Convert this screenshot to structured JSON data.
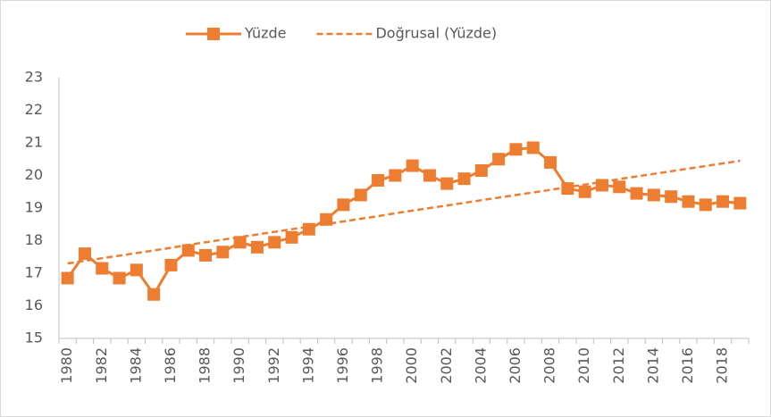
{
  "chart_data": {
    "type": "line",
    "categories": [
      "1980",
      null,
      "1982",
      null,
      "1984",
      null,
      "1986",
      null,
      "1988",
      null,
      "1990",
      null,
      "1992",
      null,
      "1994",
      null,
      "1996",
      null,
      "1998",
      null,
      "2000",
      null,
      "2002",
      null,
      "2004",
      null,
      "2006",
      null,
      "2008",
      null,
      "2010",
      null,
      "2012",
      null,
      "2014",
      null,
      "2016",
      null,
      "2018",
      null
    ],
    "series": [
      {
        "name": "Yüzde",
        "color": "#ED7D31",
        "markers": true,
        "dashed": false,
        "values": [
          16.85,
          17.6,
          17.15,
          16.85,
          17.1,
          16.35,
          17.25,
          17.7,
          17.55,
          17.65,
          17.95,
          17.8,
          17.95,
          18.1,
          18.35,
          18.65,
          19.1,
          19.4,
          19.85,
          20.0,
          20.3,
          20.0,
          19.75,
          19.9,
          20.15,
          20.5,
          20.8,
          20.85,
          20.4,
          19.6,
          19.5,
          19.7,
          19.65,
          19.45,
          19.4,
          19.35,
          19.2,
          19.1,
          19.2,
          19.15
        ]
      },
      {
        "name": "Doğrusal (Yüzde)",
        "color": "#ED7D31",
        "markers": false,
        "dashed": true,
        "values": [
          17.3,
          17.38,
          17.46,
          17.54,
          17.62,
          17.7,
          17.78,
          17.87,
          17.95,
          18.03,
          18.11,
          18.19,
          18.27,
          18.35,
          18.43,
          18.51,
          18.59,
          18.67,
          18.75,
          18.84,
          18.92,
          19.0,
          19.08,
          19.16,
          19.24,
          19.32,
          19.4,
          19.48,
          19.56,
          19.64,
          19.72,
          19.8,
          19.89,
          19.97,
          20.05,
          20.13,
          20.21,
          20.29,
          20.37,
          20.45
        ]
      }
    ],
    "ylim": [
      15,
      23
    ],
    "yticks": [
      15,
      16,
      17,
      18,
      19,
      20,
      21,
      22,
      23
    ],
    "grid": false,
    "legend": "top"
  }
}
